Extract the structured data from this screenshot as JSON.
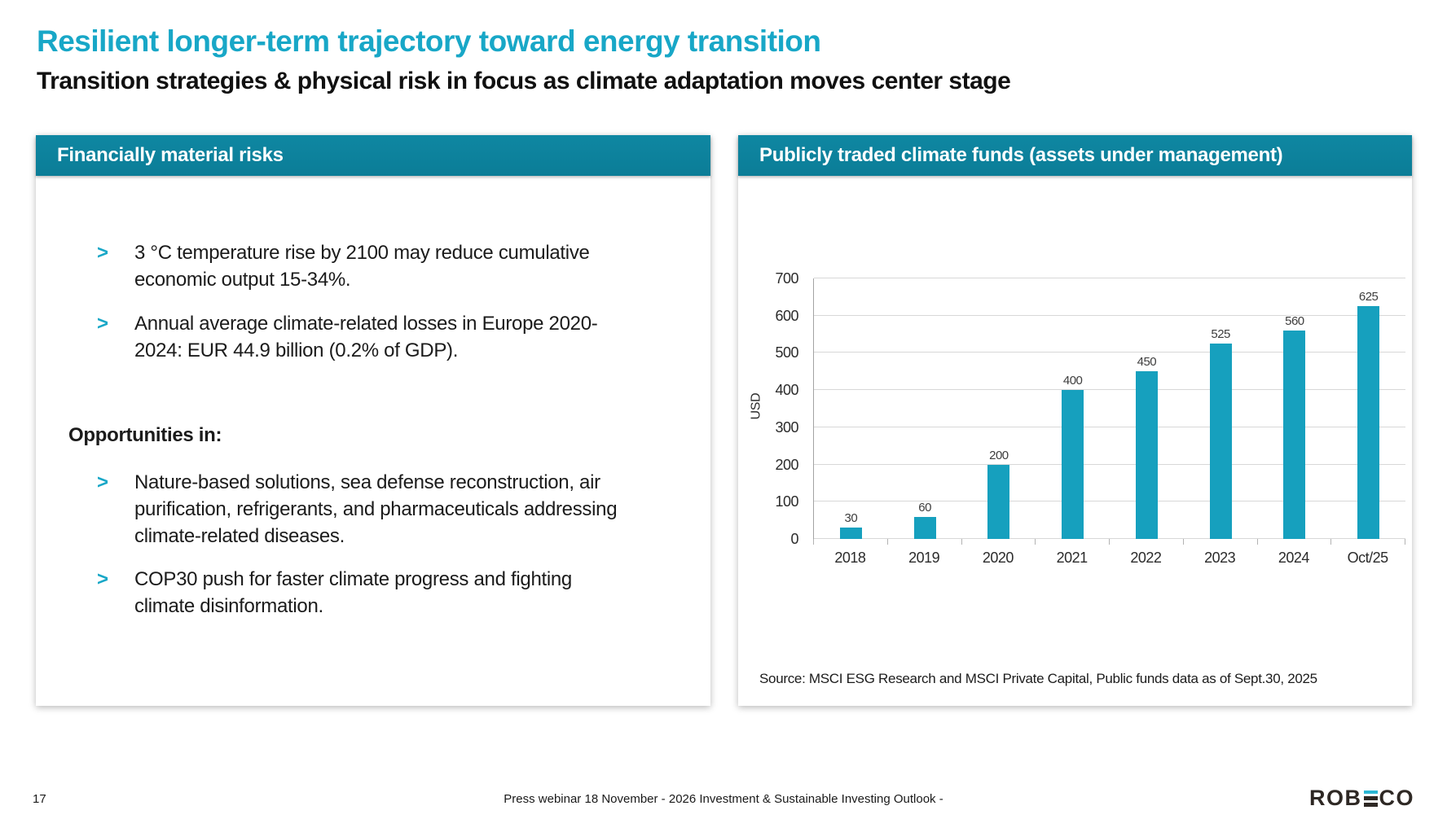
{
  "slide": {
    "title": "Resilient longer-term trajectory toward energy transition",
    "subtitle": "Transition strategies & physical risk in focus as climate adaptation moves center stage"
  },
  "bullet_marker": ">",
  "left_panel": {
    "header": "Financially material risks",
    "bullets": [
      "3 °C temperature rise by 2100 may reduce cumulative economic output 15-34%.",
      "Annual average climate-related losses in Europe 2020-2024: EUR 44.9 billion (0.2% of GDP)."
    ],
    "opportunities_label": "Opportunities in:",
    "opportunity_bullets": [
      "Nature-based solutions, sea defense reconstruction, air purification, refrigerants, and pharmaceuticals addressing climate-related diseases.",
      "COP30 push for faster climate progress and fighting climate disinformation."
    ]
  },
  "right_panel": {
    "header": "Publicly traded climate funds (assets under management)",
    "source": "Source: MSCI ESG Research and MSCI Private Capital, Public funds data as of Sept.30, 2025"
  },
  "chart_data": {
    "type": "bar",
    "title": "Publicly traded climate funds (assets under management)",
    "categories": [
      "2018",
      "2019",
      "2020",
      "2021",
      "2022",
      "2023",
      "2024",
      "Oct/25"
    ],
    "values": [
      30,
      60,
      200,
      400,
      450,
      525,
      560,
      625
    ],
    "xlabel": "",
    "ylabel": "USD",
    "ylim": [
      0,
      700
    ],
    "ytick_interval": 100,
    "grid": true,
    "legend": false,
    "bar_color": "#16a0be"
  },
  "footer": {
    "page_number": "17",
    "center_text": "Press webinar 18 November - 2026 Investment & Sustainable Investing Outlook -",
    "logo_prefix": "ROB",
    "logo_suffix": "CO"
  },
  "colors": {
    "accent_teal": "#18a7c7",
    "header_bar": "#0b7d97",
    "bar_fill": "#16a0be",
    "text": "#1b1b1b"
  }
}
